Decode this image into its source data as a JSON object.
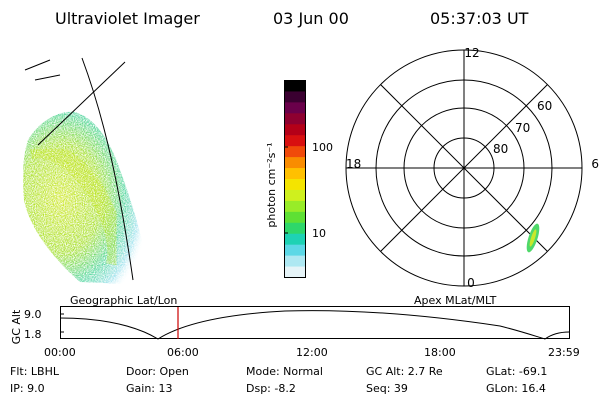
{
  "header": {
    "title": "Ultraviolet Imager",
    "date": "03 Jun 00",
    "time": "05:37:03 UT"
  },
  "colorbar": {
    "label": "photon cm⁻²s⁻¹",
    "ticks": [
      "100",
      "10"
    ],
    "colors": [
      "#000000",
      "#3a0030",
      "#6a004a",
      "#8e0030",
      "#b40018",
      "#d81010",
      "#f04a0a",
      "#f98c00",
      "#ffc000",
      "#f4e400",
      "#cff01e",
      "#98ec28",
      "#5ee034",
      "#2ed76a",
      "#1ed2b4",
      "#5cd8e6",
      "#aee8f2",
      "#e6f4f8"
    ]
  },
  "polar": {
    "labels": {
      "top": "12",
      "bottom": "0",
      "left": "18",
      "right": "6"
    },
    "lat_labels": [
      "60",
      "70",
      "80"
    ]
  },
  "timeline": {
    "left_label": "Geographic Lat/Lon",
    "right_label": "Apex MLat/MLT",
    "y_axis_label": "GC Alt",
    "y_ticks": [
      "9.0",
      "1.8"
    ],
    "x_ticks": [
      "00:00",
      "06:00",
      "12:00",
      "18:00",
      "23:59"
    ],
    "cursor_color": "#cc0000"
  },
  "info": {
    "flt": "Flt:  LBHL",
    "ip": "IP:  9.0",
    "door": "Door:  Open",
    "gain": "Gain:  13",
    "mode": "Mode:  Normal",
    "dsp": "Dsp:     -8.2",
    "gcalt": "GC Alt:  2.7 Re",
    "seq": "Seq:  39",
    "glat": "GLat:   -69.1",
    "glon": "GLon:   16.4"
  }
}
